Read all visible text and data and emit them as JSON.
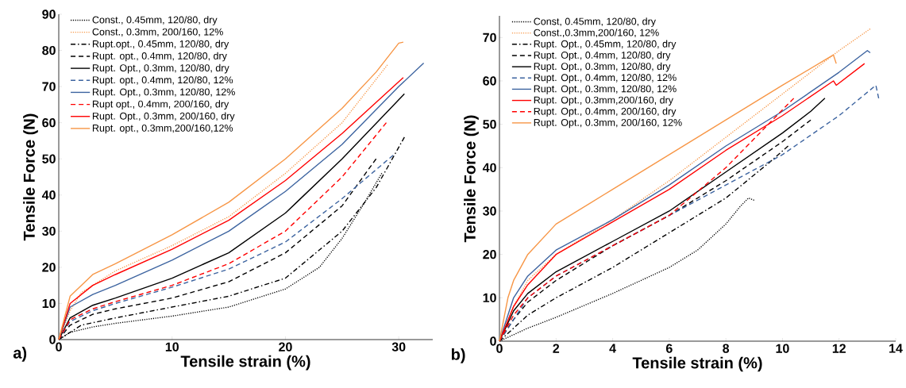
{
  "chart_data": [
    {
      "type": "line",
      "xlabel": "Tensile strain (%)",
      "ylabel": "Tensile Force (N)",
      "annotations": [
        "a)"
      ],
      "legend": "top left",
      "xlim": [
        0,
        33
      ],
      "ylim": [
        0,
        90
      ],
      "xticks": [
        0,
        10,
        20,
        30
      ],
      "yticks": [
        0,
        10,
        20,
        30,
        40,
        50,
        60,
        70,
        80,
        90
      ],
      "series": [
        {
          "name": "Const., 0.45mm, 120/80, dry",
          "color": "#000000",
          "line_style": "dotted",
          "x": [
            0,
            1,
            3,
            5,
            10,
            15,
            20,
            23,
            25,
            27,
            28.5
          ],
          "values": [
            0,
            2,
            3.5,
            4.5,
            6.5,
            9,
            14,
            20,
            28,
            38,
            46
          ]
        },
        {
          "name": "Const., 0.3mm, 200/160, 12%",
          "color": "#f79646",
          "line_style": "dotted",
          "x": [
            0,
            1,
            2,
            5,
            10,
            15,
            20,
            25,
            29
          ],
          "values": [
            0,
            8,
            13,
            19,
            26,
            34,
            46,
            60,
            76
          ]
        },
        {
          "name": "Rupt.opt., 0.45mm, 120/80, dry",
          "color": "#000000",
          "line_style": "dashdot",
          "x": [
            0,
            2,
            5,
            10,
            15,
            20,
            25,
            28,
            30.5
          ],
          "values": [
            0,
            4,
            6,
            9,
            12,
            17,
            30,
            42,
            56
          ]
        },
        {
          "name": "Rupt. opt., 0.4mm, 120/80, dry",
          "color": "#000000",
          "line_style": "dashed",
          "x": [
            0,
            1,
            3,
            5,
            10,
            15,
            20,
            25,
            28
          ],
          "values": [
            0,
            4,
            7,
            8.5,
            11.5,
            16,
            24,
            37,
            50
          ]
        },
        {
          "name": "Rupt. Opt., 0.3mm, 120/80, dry",
          "color": "#000000",
          "line_style": "solid",
          "x": [
            0,
            1,
            3,
            5,
            10,
            15,
            20,
            21,
            25,
            30.5
          ],
          "values": [
            0,
            6,
            9.5,
            11.5,
            17,
            24,
            35,
            38,
            50,
            68
          ]
        },
        {
          "name": "Rupt. opt., 0.4mm, 120/80, 12%",
          "color": "#3d64a0",
          "line_style": "dashed",
          "x": [
            0,
            1,
            3,
            5,
            10,
            15,
            20,
            25,
            29.5
          ],
          "values": [
            0,
            5,
            8,
            10,
            14.5,
            19.5,
            27,
            39,
            51
          ]
        },
        {
          "name": "Rupt. Opt., 0.3mm, 120/80, 12%",
          "color": "#3d64a0",
          "line_style": "solid",
          "x": [
            0,
            1,
            3,
            5,
            10,
            15,
            20,
            25,
            30,
            32.2
          ],
          "values": [
            0,
            9,
            12.5,
            15,
            22,
            30,
            41,
            54,
            70,
            76.5
          ]
        },
        {
          "name": "Rupt opt., 0.4mm, 200/160, dry",
          "color": "#ff0000",
          "line_style": "dashed",
          "x": [
            0,
            1,
            3,
            5,
            10,
            15,
            20,
            25,
            28.9
          ],
          "values": [
            0,
            5.5,
            8.5,
            10.5,
            15,
            21,
            30,
            45,
            60
          ]
        },
        {
          "name": "Rupt. Opt., 0.3mm, 200/160, dry",
          "color": "#ff0000",
          "line_style": "solid",
          "x": [
            0,
            1,
            3,
            5,
            10,
            15,
            20,
            25,
            30.4
          ],
          "values": [
            0,
            10,
            15,
            18,
            25,
            33,
            44,
            57,
            72.5
          ]
        },
        {
          "name": "Rupt. opt., 0.3mm,200/160,12%",
          "color": "#f79646",
          "line_style": "solid",
          "x": [
            0,
            1,
            3,
            5,
            10,
            15,
            20,
            25,
            28,
            30,
            30.4
          ],
          "values": [
            0,
            12,
            18,
            21,
            29,
            38,
            50,
            64,
            74,
            82,
            82.3
          ]
        }
      ]
    },
    {
      "type": "line",
      "xlabel": "Tensile strain (%)",
      "ylabel": "Tensile Force (N)",
      "annotations": [
        "b)"
      ],
      "legend": "top left",
      "xlim": [
        0,
        14
      ],
      "ylim": [
        0,
        75
      ],
      "xticks": [
        0,
        2,
        4,
        6,
        8,
        10,
        12,
        14
      ],
      "yticks": [
        0,
        10,
        20,
        30,
        40,
        50,
        60,
        70
      ],
      "series": [
        {
          "name": "Const, 0.45mm, 120/80, dry",
          "color": "#000000",
          "line_style": "dotted",
          "x": [
            0,
            1,
            2,
            4,
            6,
            7,
            8,
            8.5,
            8.8,
            9
          ],
          "values": [
            0,
            3,
            5.5,
            11,
            17,
            21,
            27,
            31,
            33,
            32.5
          ]
        },
        {
          "name": "Const.,0.3mm,200/160, 12%",
          "color": "#f79646",
          "line_style": "dotted",
          "x": [
            0,
            0.5,
            1,
            2,
            4,
            6,
            8,
            10,
            12,
            13.1
          ],
          "values": [
            0,
            8,
            14,
            20,
            28,
            37,
            47,
            57,
            67,
            72
          ]
        },
        {
          "name": "Rupt. Opt., 0.45mm, 120/80, dry",
          "color": "#000000",
          "line_style": "dashdot",
          "x": [
            0,
            1,
            2,
            4,
            6,
            8,
            9.5,
            10.2
          ],
          "values": [
            0,
            6,
            10,
            17,
            25,
            33,
            41,
            45
          ]
        },
        {
          "name": "Rupt. Opt., 0.4mm, 120/80, dry",
          "color": "#000000",
          "line_style": "dashed",
          "x": [
            0,
            0.5,
            1,
            2,
            4,
            6,
            8,
            10,
            11
          ],
          "values": [
            0,
            5,
            9,
            14,
            22,
            29,
            37,
            46,
            51
          ]
        },
        {
          "name": "Rupt. Opt., 0.3mm, 120/80, dry",
          "color": "#000000",
          "line_style": "solid",
          "x": [
            0,
            0.5,
            1,
            2,
            4,
            6,
            8,
            10,
            11,
            11.5
          ],
          "values": [
            0,
            7,
            11,
            16,
            23,
            30,
            39,
            48,
            53,
            56
          ]
        },
        {
          "name": "Rupt. Opt., 0.4mm, 120/80, 12%",
          "color": "#3d64a0",
          "line_style": "dashed",
          "x": [
            0,
            1,
            2,
            4,
            6,
            8,
            10,
            12,
            13.3,
            13.4
          ],
          "values": [
            0,
            10,
            15,
            22,
            29,
            36,
            43,
            52,
            59,
            56
          ]
        },
        {
          "name": "Rupt. Opt., 0.3mm, 120/80, 12%",
          "color": "#3d64a0",
          "line_style": "solid",
          "x": [
            0,
            0.5,
            1,
            2,
            4,
            6,
            8,
            10,
            12,
            13,
            13.1
          ],
          "values": [
            0,
            10,
            15,
            21,
            28,
            36,
            45,
            53,
            62,
            67,
            66.5
          ]
        },
        {
          "name": "Rupt. Opt., 0.3mm,200/160, dry",
          "color": "#ff0000",
          "line_style": "solid",
          "x": [
            0,
            0.5,
            1,
            2,
            4,
            6,
            8,
            10,
            11.8,
            11.9,
            12.9
          ],
          "values": [
            0,
            8,
            13,
            20,
            27.5,
            35,
            44,
            52,
            60,
            59,
            64
          ]
        },
        {
          "name": "Rupt. Opt., 0.4mm, 200/160, dry",
          "color": "#ff0000",
          "line_style": "dashed",
          "x": [
            0,
            0.5,
            1,
            2,
            4,
            6,
            8,
            9.8,
            10.4
          ],
          "values": [
            0,
            6,
            10,
            15,
            22,
            29,
            40,
            52,
            56
          ]
        },
        {
          "name": "Rupt. Opt., 0.3mm, 200/160, 12%",
          "color": "#f79646",
          "line_style": "solid",
          "x": [
            0,
            0.3,
            0.5,
            1,
            2,
            4,
            6,
            8,
            10,
            11.8,
            11.9
          ],
          "values": [
            0,
            10,
            14,
            20,
            27,
            35,
            43,
            51,
            59,
            66,
            64
          ]
        }
      ]
    }
  ]
}
